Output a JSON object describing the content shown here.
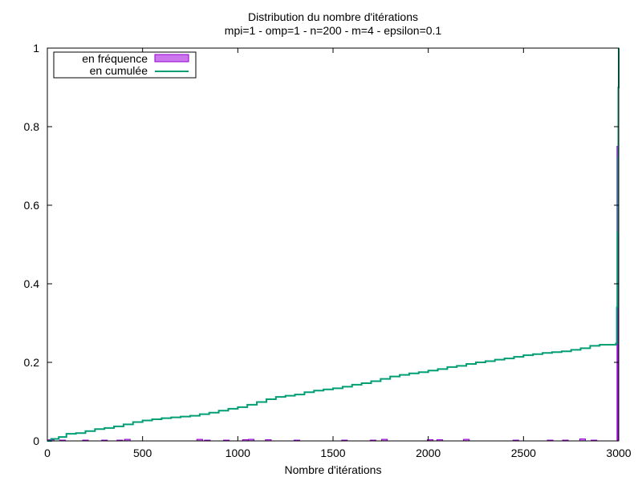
{
  "chart_data": {
    "type": "area",
    "title": "Distribution du nombre d'itérations",
    "subtitle": "mpi=1 - omp=1 - n=200 - m=4 - epsilon=0.1",
    "xlabel": "Nombre d'itérations",
    "ylabel": "",
    "xlim": [
      0,
      3000
    ],
    "ylim": [
      0,
      1
    ],
    "xticks": [
      "0",
      "500",
      "1000",
      "1500",
      "2000",
      "2500",
      "3000"
    ],
    "yticks": [
      "0",
      "0.2",
      "0.4",
      "0.6",
      "0.8",
      "1"
    ],
    "grid": false,
    "legend_position": "top-left",
    "colors": {
      "frequence": "#cc77ee",
      "frequence_edge": "#9400d3",
      "cumulee": "#009e73"
    },
    "series": [
      {
        "name": "en fréquence",
        "style": "boxes",
        "bars": [
          {
            "x": 20,
            "y": 0.003
          },
          {
            "x": 80,
            "y": 0.002
          },
          {
            "x": 200,
            "y": 0.002
          },
          {
            "x": 300,
            "y": 0.002
          },
          {
            "x": 380,
            "y": 0.002
          },
          {
            "x": 420,
            "y": 0.004
          },
          {
            "x": 800,
            "y": 0.004
          },
          {
            "x": 840,
            "y": 0.002
          },
          {
            "x": 940,
            "y": 0.002
          },
          {
            "x": 1040,
            "y": 0.003
          },
          {
            "x": 1070,
            "y": 0.004
          },
          {
            "x": 1160,
            "y": 0.003
          },
          {
            "x": 1310,
            "y": 0.002
          },
          {
            "x": 1560,
            "y": 0.002
          },
          {
            "x": 1710,
            "y": 0.002
          },
          {
            "x": 1770,
            "y": 0.004
          },
          {
            "x": 2010,
            "y": 0.003
          },
          {
            "x": 2060,
            "y": 0.003
          },
          {
            "x": 2200,
            "y": 0.004
          },
          {
            "x": 2460,
            "y": 0.002
          },
          {
            "x": 2640,
            "y": 0.002
          },
          {
            "x": 2720,
            "y": 0.002
          },
          {
            "x": 2810,
            "y": 0.005
          },
          {
            "x": 2870,
            "y": 0.002
          },
          {
            "x": 2997,
            "y": 0.75
          }
        ]
      },
      {
        "name": "en cumulée",
        "style": "steps",
        "points": [
          {
            "x": 0,
            "y": 0
          },
          {
            "x": 20,
            "y": 0.005
          },
          {
            "x": 60,
            "y": 0.01
          },
          {
            "x": 100,
            "y": 0.018
          },
          {
            "x": 150,
            "y": 0.02
          },
          {
            "x": 200,
            "y": 0.025
          },
          {
            "x": 250,
            "y": 0.03
          },
          {
            "x": 300,
            "y": 0.033
          },
          {
            "x": 350,
            "y": 0.037
          },
          {
            "x": 400,
            "y": 0.042
          },
          {
            "x": 450,
            "y": 0.048
          },
          {
            "x": 500,
            "y": 0.052
          },
          {
            "x": 550,
            "y": 0.055
          },
          {
            "x": 600,
            "y": 0.058
          },
          {
            "x": 650,
            "y": 0.06
          },
          {
            "x": 700,
            "y": 0.062
          },
          {
            "x": 750,
            "y": 0.064
          },
          {
            "x": 800,
            "y": 0.068
          },
          {
            "x": 850,
            "y": 0.072
          },
          {
            "x": 900,
            "y": 0.077
          },
          {
            "x": 950,
            "y": 0.082
          },
          {
            "x": 1000,
            "y": 0.086
          },
          {
            "x": 1050,
            "y": 0.092
          },
          {
            "x": 1100,
            "y": 0.099
          },
          {
            "x": 1150,
            "y": 0.106
          },
          {
            "x": 1200,
            "y": 0.112
          },
          {
            "x": 1250,
            "y": 0.115
          },
          {
            "x": 1300,
            "y": 0.118
          },
          {
            "x": 1350,
            "y": 0.124
          },
          {
            "x": 1400,
            "y": 0.128
          },
          {
            "x": 1450,
            "y": 0.131
          },
          {
            "x": 1500,
            "y": 0.134
          },
          {
            "x": 1550,
            "y": 0.138
          },
          {
            "x": 1600,
            "y": 0.143
          },
          {
            "x": 1650,
            "y": 0.147
          },
          {
            "x": 1700,
            "y": 0.152
          },
          {
            "x": 1750,
            "y": 0.158
          },
          {
            "x": 1800,
            "y": 0.164
          },
          {
            "x": 1850,
            "y": 0.168
          },
          {
            "x": 1900,
            "y": 0.172
          },
          {
            "x": 1950,
            "y": 0.175
          },
          {
            "x": 2000,
            "y": 0.179
          },
          {
            "x": 2050,
            "y": 0.183
          },
          {
            "x": 2100,
            "y": 0.188
          },
          {
            "x": 2150,
            "y": 0.191
          },
          {
            "x": 2200,
            "y": 0.196
          },
          {
            "x": 2250,
            "y": 0.2
          },
          {
            "x": 2300,
            "y": 0.203
          },
          {
            "x": 2350,
            "y": 0.207
          },
          {
            "x": 2400,
            "y": 0.21
          },
          {
            "x": 2450,
            "y": 0.214
          },
          {
            "x": 2500,
            "y": 0.218
          },
          {
            "x": 2550,
            "y": 0.221
          },
          {
            "x": 2600,
            "y": 0.224
          },
          {
            "x": 2650,
            "y": 0.226
          },
          {
            "x": 2700,
            "y": 0.228
          },
          {
            "x": 2750,
            "y": 0.232
          },
          {
            "x": 2800,
            "y": 0.236
          },
          {
            "x": 2850,
            "y": 0.242
          },
          {
            "x": 2900,
            "y": 0.245
          },
          {
            "x": 2985,
            "y": 0.248
          },
          {
            "x": 2990,
            "y": 0.34
          },
          {
            "x": 2993,
            "y": 0.53
          },
          {
            "x": 2996,
            "y": 0.72
          },
          {
            "x": 2998,
            "y": 0.9
          },
          {
            "x": 3000,
            "y": 1.0
          }
        ]
      }
    ]
  }
}
